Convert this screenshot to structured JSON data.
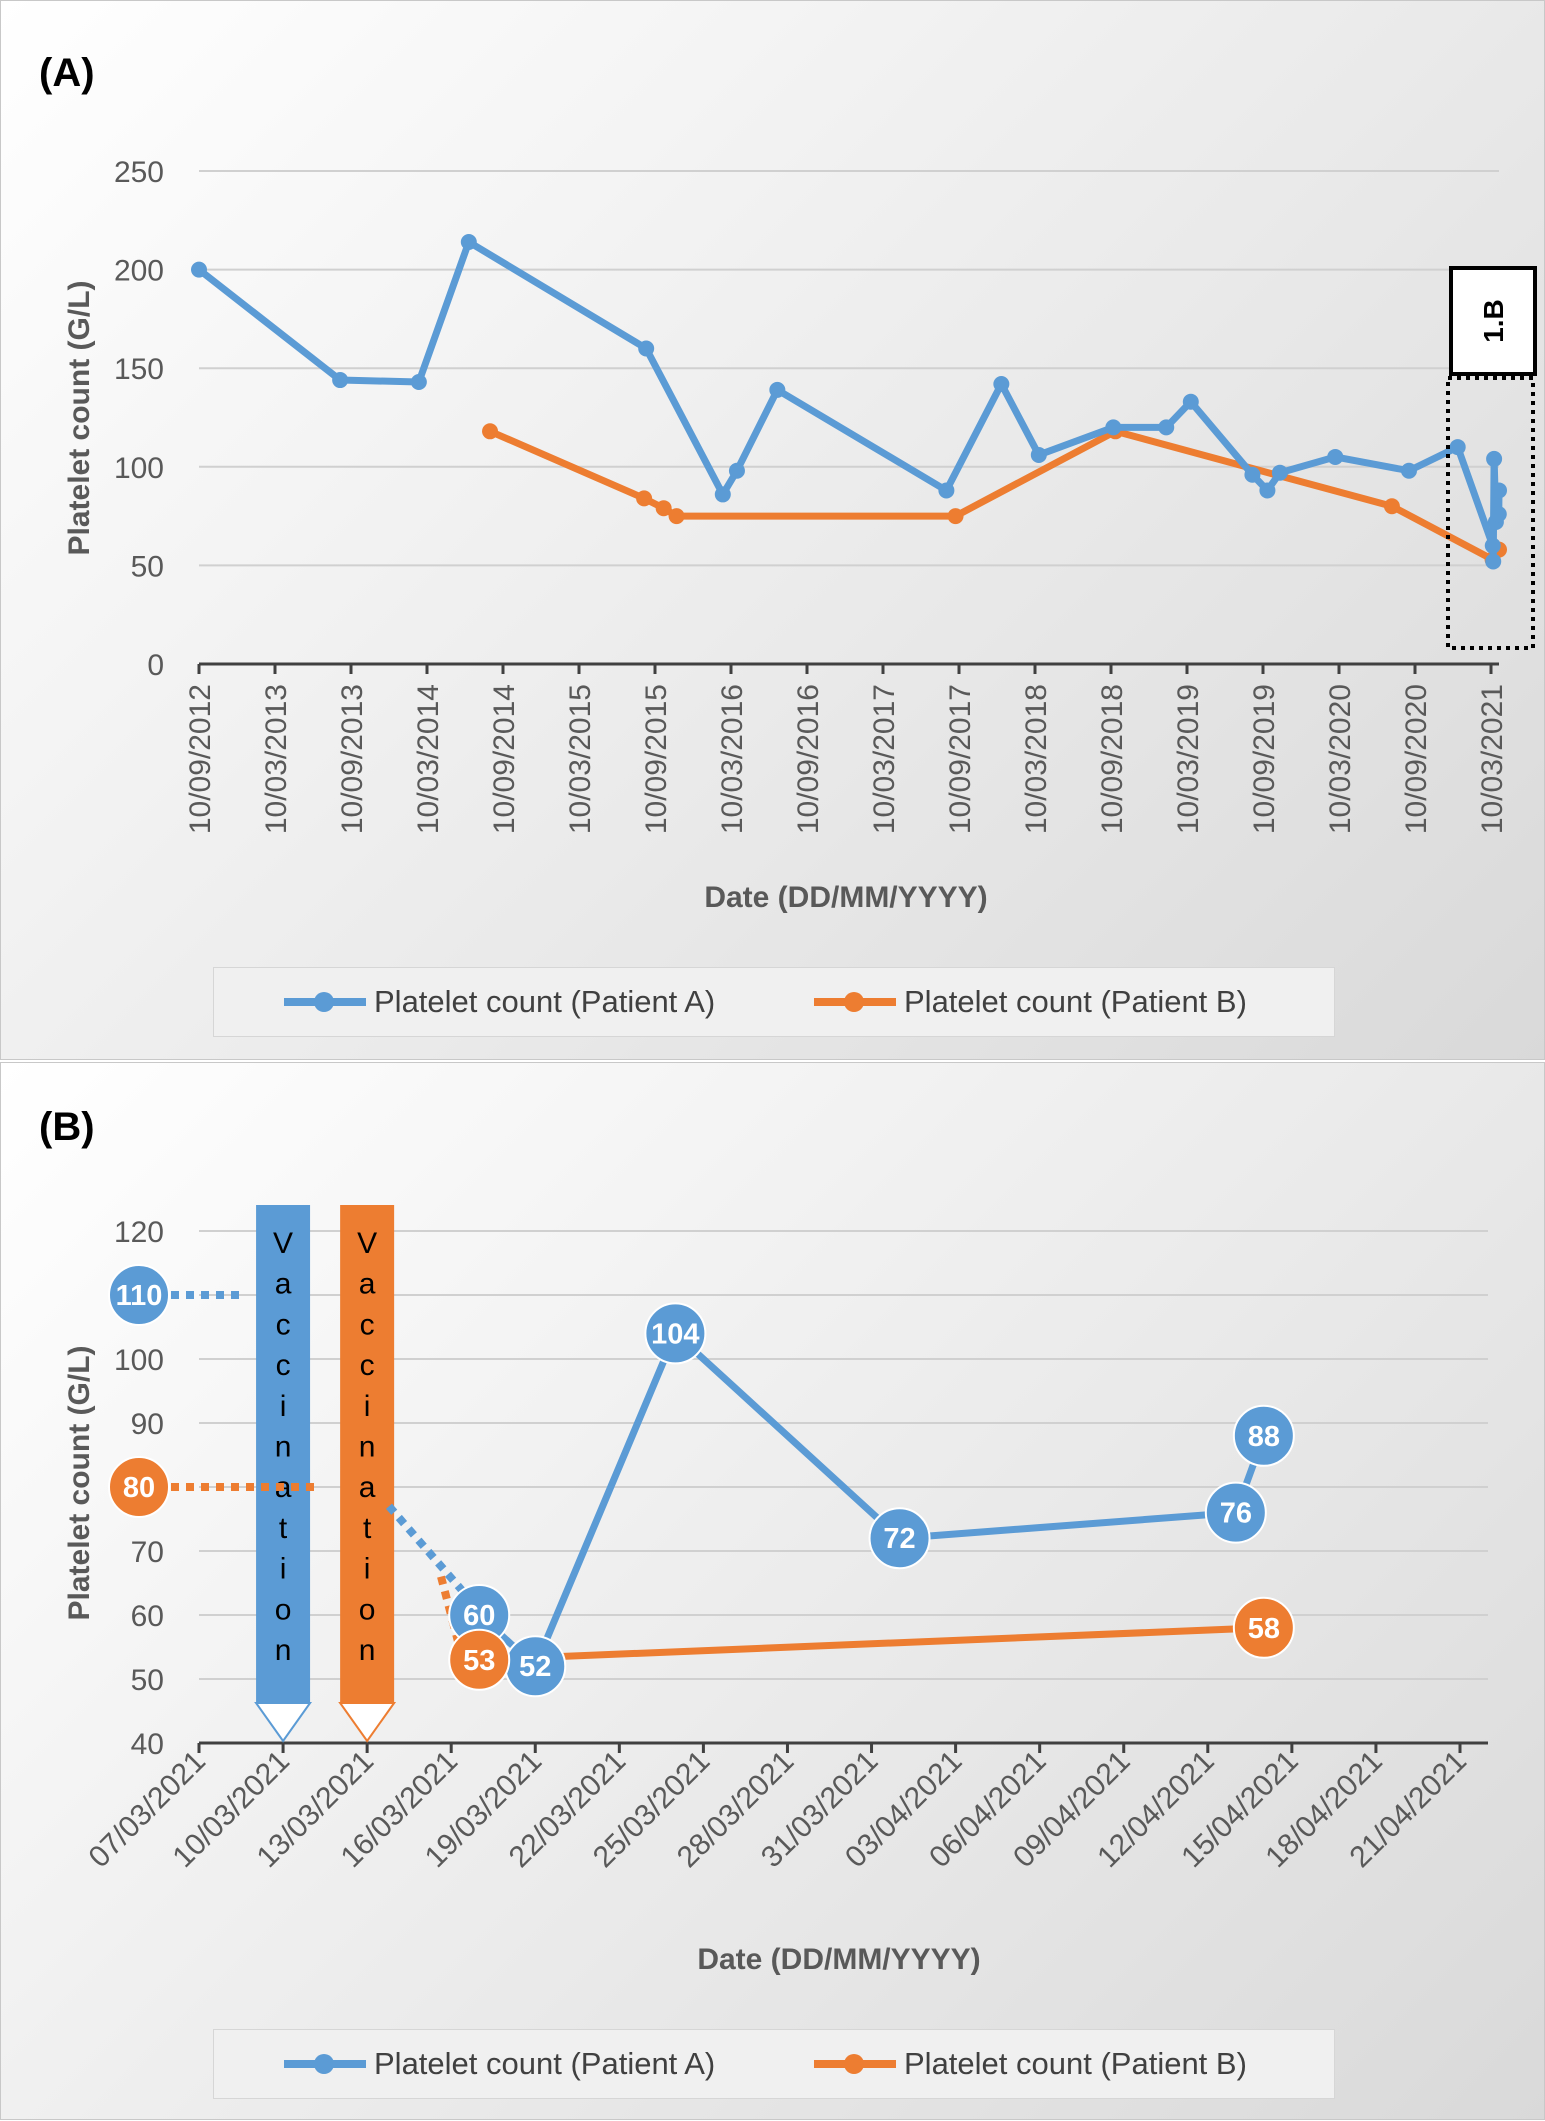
{
  "panels": {
    "a_label": "(A)",
    "b_label": "(B)"
  },
  "colors": {
    "patient_a": "#5b9bd5",
    "patient_b": "#ed7d31",
    "grid": "#d0d0d0",
    "axis_text": "#595959"
  },
  "legend": {
    "series_a": "Platelet count (Patient A)",
    "series_b": "Platelet count (Patient B)"
  },
  "chart_data": [
    {
      "type": "line",
      "title": "",
      "xlabel": "Date (DD/MM/YYYY)",
      "ylabel": "Platelet count (G/L)",
      "ylim": [
        0,
        250
      ],
      "yticks": [
        0,
        50,
        100,
        150,
        200,
        250
      ],
      "xlim": [
        "2012-09-10",
        "2021-03-10"
      ],
      "xtick_labels": [
        "10/09/2012",
        "10/03/2013",
        "10/09/2013",
        "10/03/2014",
        "10/09/2014",
        "10/03/2015",
        "10/09/2015",
        "10/03/2016",
        "10/09/2016",
        "10/03/2017",
        "10/09/2017",
        "10/03/2018",
        "10/09/2018",
        "10/03/2019",
        "10/09/2019",
        "10/03/2020",
        "10/09/2020",
        "10/03/2021"
      ],
      "grid": true,
      "legend_position": "bottom",
      "annotation": "1.B",
      "series": [
        {
          "name": "Platelet count (Patient A)",
          "points": [
            [
              "2012-09-10",
              200
            ],
            [
              "2013-08-15",
              144
            ],
            [
              "2014-02-20",
              143
            ],
            [
              "2014-06-20",
              214
            ],
            [
              "2015-08-20",
              160
            ],
            [
              "2016-02-20",
              86
            ],
            [
              "2016-03-25",
              98
            ],
            [
              "2016-06-30",
              139
            ],
            [
              "2017-08-10",
              88
            ],
            [
              "2017-12-20",
              142
            ],
            [
              "2018-03-20",
              106
            ],
            [
              "2018-09-15",
              120
            ],
            [
              "2019-01-20",
              120
            ],
            [
              "2019-03-20",
              133
            ],
            [
              "2019-08-15",
              96
            ],
            [
              "2019-09-20",
              88
            ],
            [
              "2019-10-20",
              97
            ],
            [
              "2020-03-01",
              105
            ],
            [
              "2020-08-25",
              98
            ],
            [
              "2020-12-20",
              110
            ],
            [
              "2021-03-18",
              60
            ],
            [
              "2021-03-20",
              52
            ],
            [
              "2021-03-24",
              104
            ],
            [
              "2021-04-01",
              72
            ],
            [
              "2021-04-14",
              76
            ],
            [
              "2021-04-15",
              88
            ]
          ]
        },
        {
          "name": "Platelet count (Patient B)",
          "points": [
            [
              "2014-08-10",
              118
            ],
            [
              "2015-08-15",
              84
            ],
            [
              "2015-10-01",
              79
            ],
            [
              "2015-11-01",
              75
            ],
            [
              "2017-09-01",
              75
            ],
            [
              "2018-09-20",
              118
            ],
            [
              "2020-07-15",
              80
            ],
            [
              "2021-03-17",
              53
            ],
            [
              "2021-04-15",
              58
            ]
          ]
        }
      ]
    },
    {
      "type": "line",
      "title": "",
      "xlabel": "Date (DD/MM/YYYY)",
      "ylabel": "Platelet count (G/L)",
      "ylim": [
        40,
        120
      ],
      "yticks": [
        40,
        50,
        60,
        70,
        80,
        90,
        100,
        110,
        120
      ],
      "xlim": [
        "2021-03-07",
        "2021-04-21"
      ],
      "xtick_labels": [
        "07/03/2021",
        "10/03/2021",
        "13/03/2021",
        "16/03/2021",
        "19/03/2021",
        "22/03/2021",
        "25/03/2021",
        "28/03/2021",
        "31/03/2021",
        "03/04/2021",
        "06/04/2021",
        "09/04/2021",
        "12/04/2021",
        "15/04/2021",
        "18/04/2021",
        "21/04/2021"
      ],
      "grid": true,
      "legend_position": "bottom",
      "annotations": [
        {
          "text": "Vaccination",
          "date": "2021-03-10",
          "series": "Patient A"
        },
        {
          "text": "Vaccination",
          "date": "2021-03-13",
          "series": "Patient B"
        }
      ],
      "baseline_labels": [
        {
          "series": "Patient A",
          "value": 110
        },
        {
          "series": "Patient B",
          "value": 80
        }
      ],
      "series": [
        {
          "name": "Platelet count (Patient A)",
          "points": [
            [
              "2021-03-17",
              60
            ],
            [
              "2021-03-19",
              52
            ],
            [
              "2021-03-24",
              104
            ],
            [
              "2021-04-01",
              72
            ],
            [
              "2021-04-13",
              76
            ],
            [
              "2021-04-14",
              88
            ]
          ]
        },
        {
          "name": "Platelet count (Patient B)",
          "points": [
            [
              "2021-03-17",
              53
            ],
            [
              "2021-04-14",
              58
            ]
          ]
        }
      ]
    }
  ]
}
